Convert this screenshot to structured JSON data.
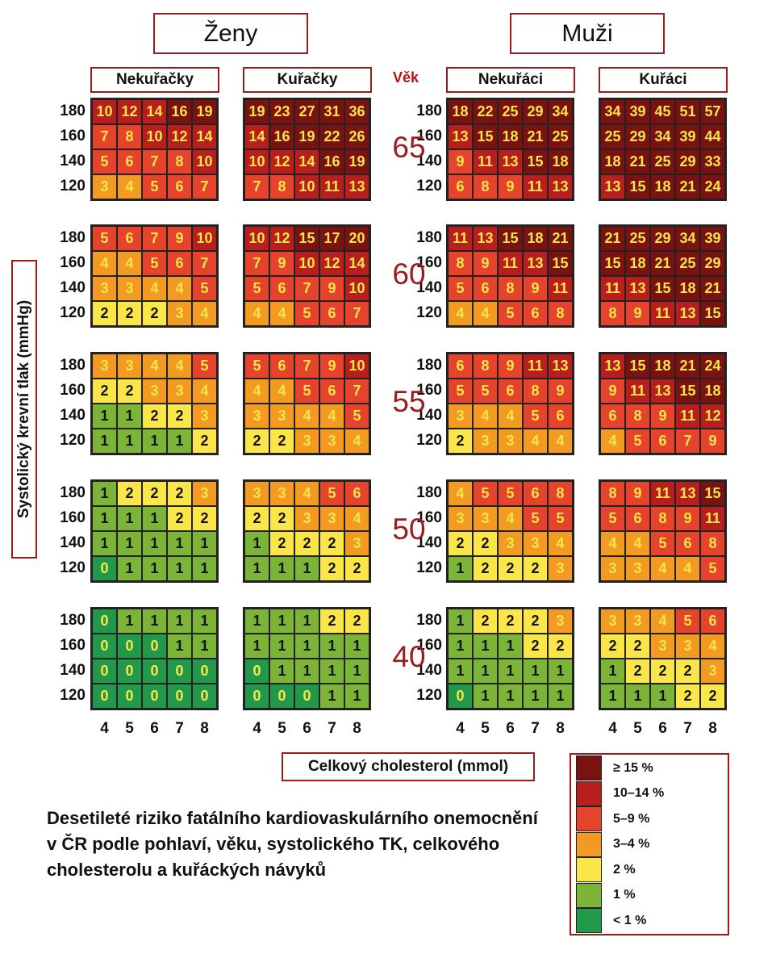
{
  "headers": {
    "women": "Ženy",
    "men": "Muži",
    "age": "Věk"
  },
  "chart_data": {
    "type": "heatmap",
    "title": "Desetileté riziko fatálního kardiovaskulárního onemocnění v ČR podle pohlaví, věku, systolického TK, celkového cholesterolu a kuřáckých návyků",
    "ylabel": "Systolický krevní tlak (mmHg)",
    "xlabel": "Celkový cholesterol (mmol)",
    "bp_rows": [
      "180",
      "160",
      "140",
      "120"
    ],
    "chol_cols": [
      "4",
      "5",
      "6",
      "7",
      "8"
    ],
    "ages": [
      "65",
      "60",
      "55",
      "50",
      "40"
    ],
    "groups": [
      {
        "name": "Nekuřačky",
        "sex": "women",
        "values": [
          [
            [
              10,
              12,
              14,
              16,
              19
            ],
            [
              7,
              8,
              10,
              12,
              14
            ],
            [
              5,
              6,
              7,
              8,
              10
            ],
            [
              3,
              4,
              5,
              6,
              7
            ]
          ],
          [
            [
              5,
              6,
              7,
              9,
              10
            ],
            [
              4,
              4,
              5,
              6,
              7
            ],
            [
              3,
              3,
              4,
              4,
              5
            ],
            [
              2,
              2,
              2,
              3,
              4
            ]
          ],
          [
            [
              3,
              3,
              4,
              4,
              5
            ],
            [
              2,
              2,
              3,
              3,
              4
            ],
            [
              1,
              1,
              2,
              2,
              3
            ],
            [
              1,
              1,
              1,
              1,
              2
            ]
          ],
          [
            [
              1,
              2,
              2,
              2,
              3
            ],
            [
              1,
              1,
              1,
              2,
              2
            ],
            [
              1,
              1,
              1,
              1,
              1
            ],
            [
              0,
              1,
              1,
              1,
              1
            ]
          ],
          [
            [
              0,
              1,
              1,
              1,
              1
            ],
            [
              0,
              0,
              0,
              1,
              1
            ],
            [
              0,
              0,
              0,
              0,
              0
            ],
            [
              0,
              0,
              0,
              0,
              0
            ]
          ]
        ]
      },
      {
        "name": "Kuřačky",
        "sex": "women",
        "values": [
          [
            [
              19,
              23,
              27,
              31,
              36
            ],
            [
              14,
              16,
              19,
              22,
              26
            ],
            [
              10,
              12,
              14,
              16,
              19
            ],
            [
              7,
              8,
              10,
              11,
              13
            ]
          ],
          [
            [
              10,
              12,
              15,
              17,
              20
            ],
            [
              7,
              9,
              10,
              12,
              14
            ],
            [
              5,
              6,
              7,
              9,
              10
            ],
            [
              4,
              4,
              5,
              6,
              7
            ]
          ],
          [
            [
              5,
              6,
              7,
              9,
              10
            ],
            [
              4,
              4,
              5,
              6,
              7
            ],
            [
              3,
              3,
              4,
              4,
              5
            ],
            [
              2,
              2,
              3,
              3,
              4
            ]
          ],
          [
            [
              3,
              3,
              4,
              5,
              6
            ],
            [
              2,
              2,
              3,
              3,
              4
            ],
            [
              1,
              2,
              2,
              2,
              3
            ],
            [
              1,
              1,
              1,
              2,
              2
            ]
          ],
          [
            [
              1,
              1,
              1,
              2,
              2
            ],
            [
              1,
              1,
              1,
              1,
              1
            ],
            [
              0,
              1,
              1,
              1,
              1
            ],
            [
              0,
              0,
              0,
              1,
              1
            ]
          ]
        ]
      },
      {
        "name": "Nekuřáci",
        "sex": "men",
        "values": [
          [
            [
              18,
              22,
              25,
              29,
              34
            ],
            [
              13,
              15,
              18,
              21,
              25
            ],
            [
              9,
              11,
              13,
              15,
              18
            ],
            [
              6,
              8,
              9,
              11,
              13
            ]
          ],
          [
            [
              11,
              13,
              15,
              18,
              21
            ],
            [
              8,
              9,
              11,
              13,
              15
            ],
            [
              5,
              6,
              8,
              9,
              11
            ],
            [
              4,
              4,
              5,
              6,
              8
            ]
          ],
          [
            [
              6,
              8,
              9,
              11,
              13
            ],
            [
              5,
              5,
              6,
              8,
              9
            ],
            [
              3,
              4,
              4,
              5,
              6
            ],
            [
              2,
              3,
              3,
              4,
              4
            ]
          ],
          [
            [
              4,
              5,
              5,
              6,
              8
            ],
            [
              3,
              3,
              4,
              5,
              5
            ],
            [
              2,
              2,
              3,
              3,
              4
            ],
            [
              1,
              2,
              2,
              2,
              3
            ]
          ],
          [
            [
              1,
              2,
              2,
              2,
              3
            ],
            [
              1,
              1,
              1,
              2,
              2
            ],
            [
              1,
              1,
              1,
              1,
              1
            ],
            [
              0,
              1,
              1,
              1,
              1
            ]
          ]
        ]
      },
      {
        "name": "Kuřáci",
        "sex": "men",
        "values": [
          [
            [
              34,
              39,
              45,
              51,
              57
            ],
            [
              25,
              29,
              34,
              39,
              44
            ],
            [
              18,
              21,
              25,
              29,
              33
            ],
            [
              13,
              15,
              18,
              21,
              24
            ]
          ],
          [
            [
              21,
              25,
              29,
              34,
              39
            ],
            [
              15,
              18,
              21,
              25,
              29
            ],
            [
              11,
              13,
              15,
              18,
              21
            ],
            [
              8,
              9,
              11,
              13,
              15
            ]
          ],
          [
            [
              13,
              15,
              18,
              21,
              24
            ],
            [
              9,
              11,
              13,
              15,
              18
            ],
            [
              6,
              8,
              9,
              11,
              12
            ],
            [
              4,
              5,
              6,
              7,
              9
            ]
          ],
          [
            [
              8,
              9,
              11,
              13,
              15
            ],
            [
              5,
              6,
              8,
              9,
              11
            ],
            [
              4,
              4,
              5,
              6,
              8
            ],
            [
              3,
              3,
              4,
              4,
              5
            ]
          ],
          [
            [
              3,
              3,
              4,
              5,
              6
            ],
            [
              2,
              2,
              3,
              3,
              4
            ],
            [
              1,
              2,
              2,
              2,
              3
            ],
            [
              1,
              1,
              1,
              2,
              2
            ]
          ]
        ]
      }
    ],
    "legend": [
      {
        "label": "≥ 15 %",
        "color": "#7a1212"
      },
      {
        "label": "10–14 %",
        "color": "#b81e1e"
      },
      {
        "label": "5–9 %",
        "color": "#e6432c"
      },
      {
        "label": "3–4 %",
        "color": "#f39a23"
      },
      {
        "label": "2 %",
        "color": "#fbe64a"
      },
      {
        "label": "1 %",
        "color": "#7bb437"
      },
      {
        "label": "< 1 %",
        "color": "#22994a"
      }
    ]
  }
}
